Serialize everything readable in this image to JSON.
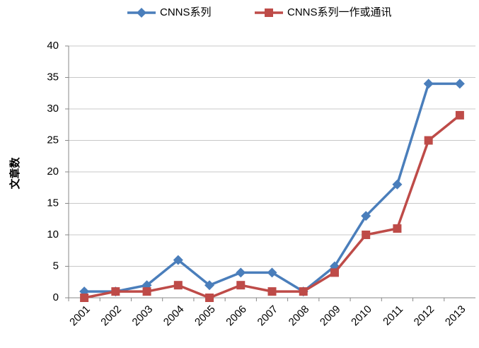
{
  "chart_data": {
    "type": "line",
    "y_label": "文章数",
    "categories": [
      "2001",
      "2002",
      "2003",
      "2004",
      "2005",
      "2006",
      "2007",
      "2008",
      "2009",
      "2010",
      "2011",
      "2012",
      "2013"
    ],
    "series": [
      {
        "name": "CNNS系列",
        "color": "#4a7ebb",
        "marker": "diamond",
        "values": [
          1,
          1,
          2,
          6,
          2,
          4,
          4,
          1,
          5,
          13,
          18,
          34,
          34
        ]
      },
      {
        "name": "CNNS系列一作或通讯",
        "color": "#be4b48",
        "marker": "square",
        "values": [
          0,
          1,
          1,
          2,
          0,
          2,
          1,
          1,
          4,
          10,
          11,
          25,
          29
        ]
      }
    ],
    "ylim": [
      0,
      40
    ],
    "yticks": [
      0,
      5,
      10,
      15,
      20,
      25,
      30,
      35,
      40
    ],
    "grid": true,
    "legend": "top"
  }
}
